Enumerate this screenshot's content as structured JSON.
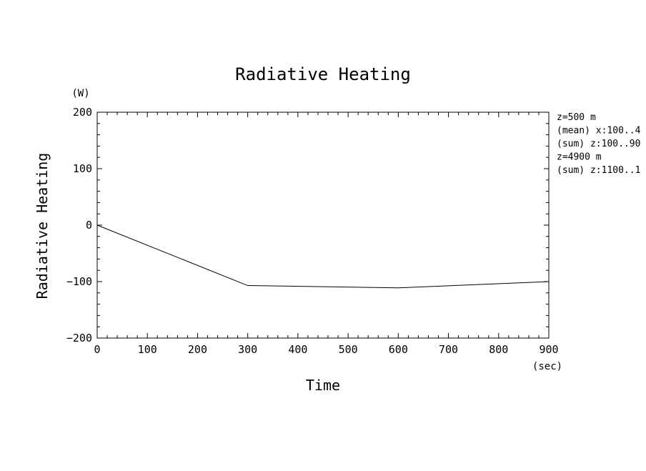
{
  "chart_data": {
    "type": "line",
    "title": "Radiative Heating",
    "xlabel": "Time",
    "ylabel": "Radiative Heating",
    "x_unit": "(sec)",
    "y_unit": "(W)",
    "xlim": [
      0,
      900
    ],
    "ylim": [
      -200,
      200
    ],
    "x_ticks": [
      0,
      100,
      200,
      300,
      400,
      500,
      600,
      700,
      800,
      900
    ],
    "x_tick_labels": [
      "0",
      "100",
      "200",
      "300",
      "400",
      "500",
      "600",
      "700",
      "800",
      "900"
    ],
    "y_ticks": [
      200,
      100,
      0,
      -100,
      -200
    ],
    "y_tick_labels": [
      "200",
      "100",
      "0",
      "−100",
      "−200"
    ],
    "grid": false,
    "series": [
      {
        "x": [
          0,
          300,
          600,
          900
        ],
        "y": [
          0,
          -107,
          -111,
          -100
        ],
        "color": "#000000"
      }
    ],
    "annotations": [
      "z=500 m",
      "(mean) x:100..4",
      "(sum) z:100..90",
      "z=4900 m",
      "(sum) z:1100..1"
    ]
  }
}
